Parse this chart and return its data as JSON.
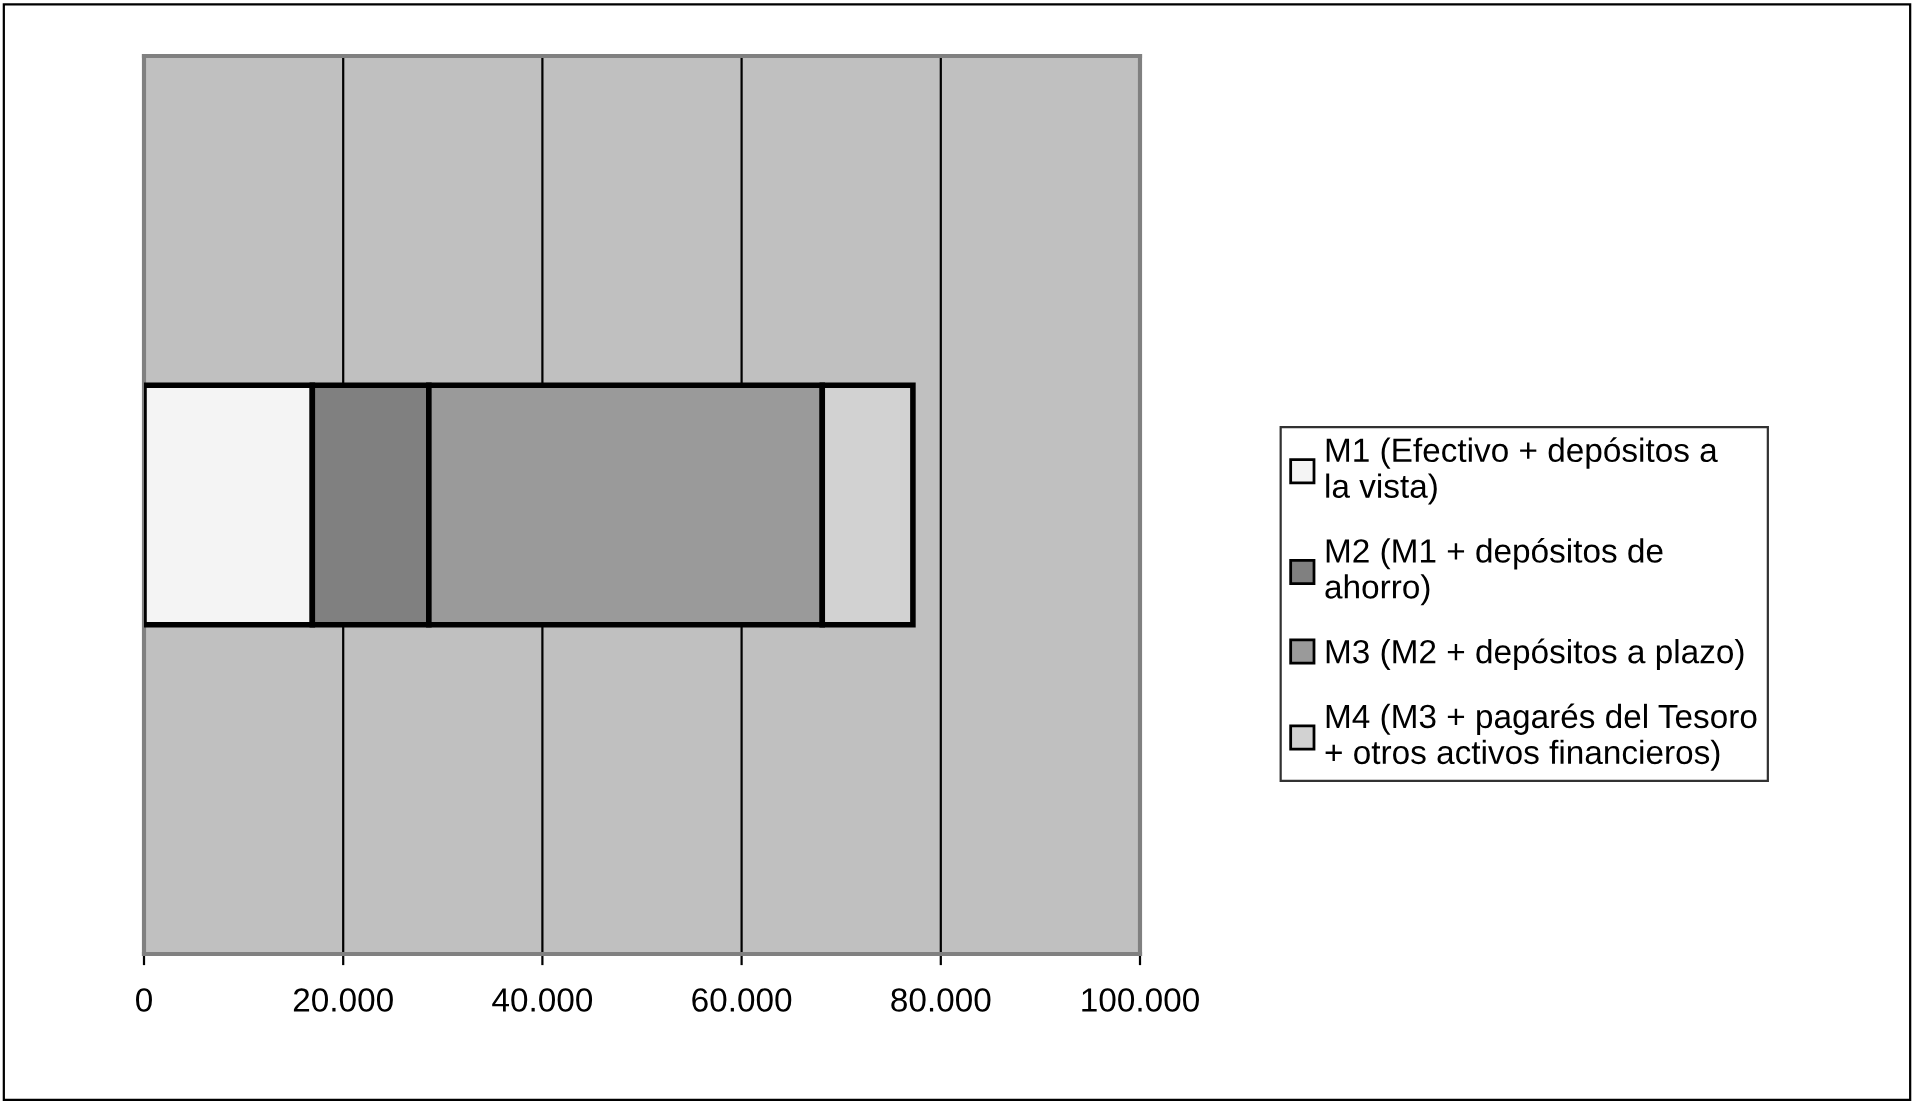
{
  "chart_data": {
    "type": "bar",
    "orientation": "horizontal",
    "stacked": true,
    "categories": [
      null
    ],
    "series": [
      {
        "name": "M1 (Efectivo + depósitos a la vista)",
        "color": "#f4f4f4",
        "values": [
          16900
        ]
      },
      {
        "name": "M2 (M1 + depósitos de ahorro)",
        "color": "#808080",
        "values": [
          11700
        ]
      },
      {
        "name": "M3 (M2 + depósitos a plazo)",
        "color": "#9a9a9a",
        "values": [
          39500
        ]
      },
      {
        "name": "M4 (M3 + pagarés del Tesoro + otros activos financieros)",
        "color": "#d2d2d2",
        "values": [
          9100
        ]
      }
    ],
    "xlim": [
      0,
      100000
    ],
    "xticks": [
      0,
      {
        "value": 20000,
        "label": "20.000"
      },
      {
        "value": 40000,
        "label": "40.000"
      },
      {
        "value": 60000,
        "label": "60.000"
      },
      {
        "value": 80000,
        "label": "80.000"
      },
      {
        "value": 100000,
        "label": "100.000"
      }
    ],
    "grid": "x",
    "legend": "right"
  }
}
